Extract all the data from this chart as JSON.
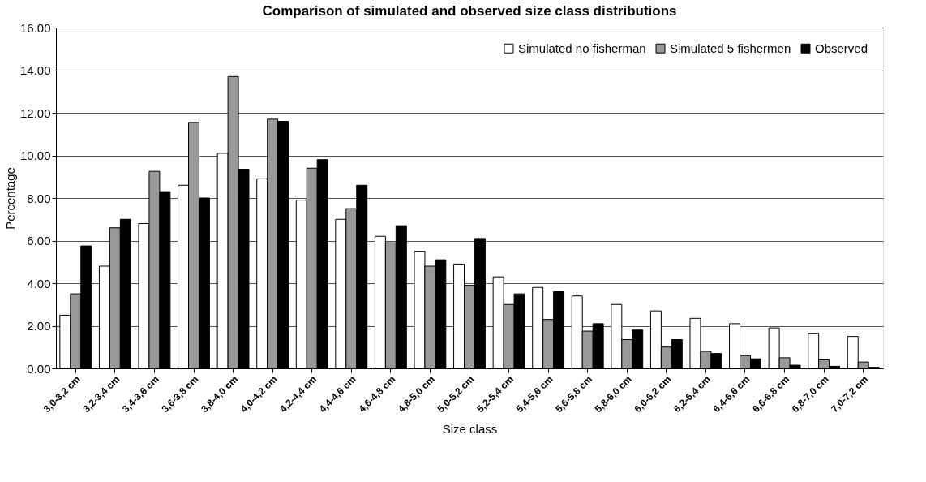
{
  "chart_data": {
    "type": "bar",
    "title": "Comparison of simulated and observed size class distributions",
    "xlabel": "Size class",
    "ylabel": "Percentage",
    "categories": [
      "3,0-3,2 cm",
      "3,2-3,4 cm",
      "3,4-3,6 cm",
      "3,6-3,8 cm",
      "3,8-4,0 cm",
      "4,0-4,2 cm",
      "4,2-4,4 cm",
      "4,4-4,6 cm",
      "4,6-4,8 cm",
      "4,8-5,0 cm",
      "5,0-5,2 cm",
      "5,2-5,4 cm",
      "5,4-5,6 cm",
      "5,6-5,8 cm",
      "5,8-6,0 cm",
      "6,0-6,2 cm",
      "6,2-6,4 cm",
      "6,4-6,6 cm",
      "6,6-6,8 cm",
      "6,8-7,0 cm",
      "7,0-7,2 cm"
    ],
    "series": [
      {
        "name": "Simulated no fisherman",
        "color": "#ffffff",
        "values": [
          2.5,
          4.8,
          6.8,
          8.6,
          10.1,
          8.9,
          7.9,
          7.0,
          6.2,
          5.5,
          4.9,
          4.3,
          3.8,
          3.4,
          3.0,
          2.7,
          2.35,
          2.1,
          1.9,
          1.65,
          1.5
        ]
      },
      {
        "name": "Simulated 5 fishermen",
        "color": "#999999",
        "values": [
          3.5,
          6.6,
          9.25,
          11.55,
          13.7,
          11.7,
          9.4,
          7.5,
          5.9,
          4.8,
          3.9,
          3.0,
          2.3,
          1.75,
          1.35,
          1.0,
          0.8,
          0.6,
          0.5,
          0.4,
          0.3
        ]
      },
      {
        "name": "Observed",
        "color": "#000000",
        "values": [
          5.75,
          7.0,
          8.3,
          8.0,
          9.35,
          11.6,
          9.8,
          8.6,
          6.7,
          5.1,
          6.1,
          3.5,
          3.6,
          2.1,
          1.8,
          1.35,
          0.7,
          0.45,
          0.15,
          0.1,
          0.05
        ]
      }
    ],
    "ylim": [
      0,
      16
    ],
    "yticks": [
      {
        "value": 0,
        "label": "0.00"
      },
      {
        "value": 2,
        "label": "2.00"
      },
      {
        "value": 4,
        "label": "4.00"
      },
      {
        "value": 6,
        "label": "6.00"
      },
      {
        "value": 8,
        "label": "8.00"
      },
      {
        "value": 10,
        "label": "10.00"
      },
      {
        "value": 12,
        "label": "12.00"
      },
      {
        "value": 14,
        "label": "14.00"
      },
      {
        "value": 16,
        "label": "16.00"
      }
    ],
    "grid": "y",
    "legend": "top right"
  }
}
